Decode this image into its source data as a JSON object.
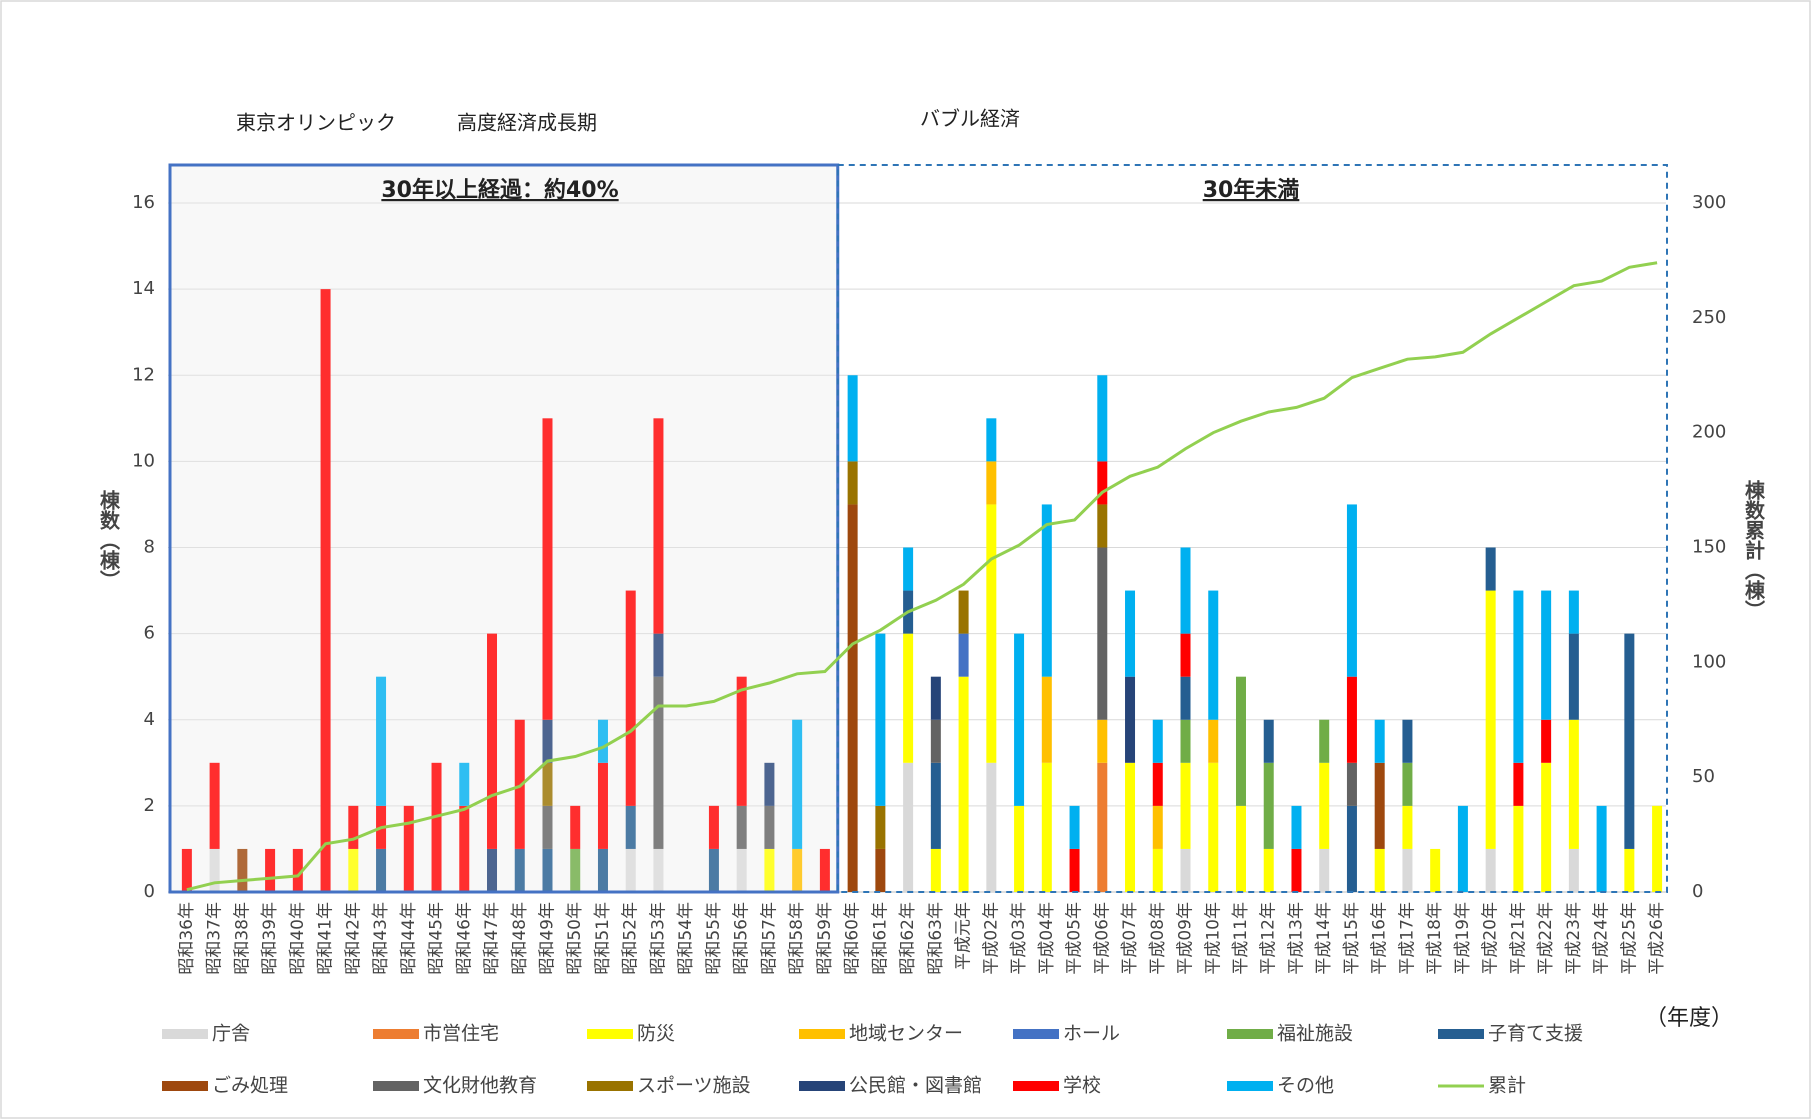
{
  "chart_data": {
    "type": "bar",
    "stacked": true,
    "annotations": [
      "東京オリンピック",
      "高度経済成長期",
      "バブル経済"
    ],
    "regions": [
      {
        "label": "30年以上経過：約40%"
      },
      {
        "label": "30年未満"
      }
    ],
    "y_label": "棟数（棟）",
    "y2_label": "棟数累計（棟）",
    "x_label": "（年度）",
    "categories": [
      "昭和36年",
      "昭和37年",
      "昭和38年",
      "昭和39年",
      "昭和40年",
      "昭和41年",
      "昭和42年",
      "昭和43年",
      "昭和44年",
      "昭和45年",
      "昭和46年",
      "昭和47年",
      "昭和48年",
      "昭和49年",
      "昭和50年",
      "昭和51年",
      "昭和52年",
      "昭和53年",
      "昭和54年",
      "昭和55年",
      "昭和56年",
      "昭和57年",
      "昭和58年",
      "昭和59年",
      "昭和60年",
      "昭和61年",
      "昭和62年",
      "昭和63年",
      "平成元年",
      "平成02年",
      "平成03年",
      "平成04年",
      "平成05年",
      "平成06年",
      "平成07年",
      "平成08年",
      "平成09年",
      "平成10年",
      "平成11年",
      "平成12年",
      "平成13年",
      "平成14年",
      "平成15年",
      "平成16年",
      "平成17年",
      "平成18年",
      "平成19年",
      "平成20年",
      "平成21年",
      "平成22年",
      "平成23年",
      "平成24年",
      "平成25年",
      "平成26年"
    ],
    "series": [
      {
        "name": "庁舎",
        "color": "#d9d9d9",
        "values": [
          0,
          1,
          0,
          0,
          0,
          0,
          0,
          0,
          0,
          0,
          0,
          0,
          0,
          0,
          0,
          0,
          1,
          1,
          0,
          0,
          1,
          0,
          0,
          0,
          0,
          0,
          3,
          0,
          0,
          3,
          0,
          0,
          0,
          0,
          0,
          0,
          1,
          0,
          0,
          0,
          0,
          1,
          0,
          0,
          1,
          0,
          0,
          1,
          0,
          0,
          1,
          0,
          0,
          0
        ]
      },
      {
        "name": "市営住宅",
        "color": "#ed7d31",
        "values": [
          0,
          0,
          0,
          0,
          0,
          0,
          0,
          0,
          0,
          0,
          0,
          0,
          0,
          0,
          0,
          0,
          0,
          0,
          0,
          0,
          0,
          0,
          0,
          0,
          0,
          0,
          0,
          0,
          0,
          0,
          0,
          0,
          0,
          3,
          0,
          0,
          0,
          0,
          0,
          0,
          0,
          0,
          0,
          0,
          0,
          0,
          0,
          0,
          0,
          0,
          0,
          0,
          0,
          0
        ]
      },
      {
        "name": "防災",
        "color": "#ffff00",
        "values": [
          0,
          0,
          0,
          0,
          0,
          0,
          1,
          0,
          0,
          0,
          0,
          0,
          0,
          0,
          0,
          0,
          0,
          0,
          0,
          0,
          0,
          1,
          0,
          0,
          0,
          0,
          3,
          1,
          5,
          6,
          2,
          3,
          0,
          0,
          3,
          1,
          2,
          3,
          2,
          1,
          0,
          2,
          0,
          1,
          1,
          1,
          0,
          6,
          2,
          3,
          3,
          0,
          1,
          2
        ]
      },
      {
        "name": "地域センター",
        "color": "#ffc000",
        "values": [
          0,
          0,
          0,
          0,
          0,
          0,
          0,
          0,
          0,
          0,
          0,
          0,
          0,
          0,
          0,
          0,
          0,
          0,
          0,
          0,
          0,
          0,
          1,
          0,
          0,
          0,
          0,
          0,
          0,
          1,
          0,
          2,
          0,
          1,
          0,
          1,
          0,
          1,
          0,
          0,
          0,
          0,
          0,
          0,
          0,
          0,
          0,
          0,
          0,
          0,
          0,
          0,
          0,
          0
        ]
      },
      {
        "name": "ホール",
        "color": "#4472c4",
        "values": [
          0,
          0,
          0,
          0,
          0,
          0,
          0,
          0,
          0,
          0,
          0,
          0,
          0,
          0,
          0,
          0,
          0,
          0,
          0,
          0,
          0,
          0,
          0,
          0,
          0,
          0,
          0,
          0,
          1,
          0,
          0,
          0,
          0,
          0,
          0,
          0,
          0,
          0,
          0,
          0,
          0,
          0,
          0,
          0,
          0,
          0,
          0,
          0,
          0,
          0,
          0,
          0,
          0,
          0
        ]
      },
      {
        "name": "福祉施設",
        "color": "#70ad47",
        "values": [
          0,
          0,
          0,
          0,
          0,
          0,
          0,
          0,
          0,
          0,
          0,
          0,
          0,
          0,
          1,
          0,
          0,
          0,
          0,
          0,
          0,
          0,
          0,
          0,
          0,
          0,
          0,
          0,
          0,
          0,
          0,
          0,
          0,
          0,
          0,
          0,
          1,
          0,
          3,
          2,
          0,
          1,
          0,
          0,
          1,
          0,
          0,
          0,
          0,
          0,
          0,
          0,
          0,
          0
        ]
      },
      {
        "name": "子育て支援",
        "color": "#255e91",
        "values": [
          0,
          0,
          0,
          0,
          0,
          0,
          0,
          1,
          0,
          0,
          0,
          0,
          1,
          1,
          0,
          1,
          1,
          0,
          0,
          1,
          0,
          0,
          0,
          0,
          0,
          0,
          1,
          2,
          0,
          0,
          0,
          0,
          0,
          0,
          0,
          0,
          1,
          0,
          0,
          1,
          0,
          0,
          2,
          0,
          1,
          0,
          0,
          1,
          0,
          0,
          2,
          0,
          5,
          0
        ]
      },
      {
        "name": "ごみ処理",
        "color": "#9e480e",
        "values": [
          0,
          0,
          1,
          0,
          0,
          0,
          0,
          0,
          0,
          0,
          0,
          0,
          0,
          0,
          0,
          0,
          0,
          0,
          0,
          0,
          0,
          0,
          0,
          0,
          9,
          1,
          0,
          0,
          0,
          0,
          0,
          0,
          0,
          0,
          0,
          0,
          0,
          0,
          0,
          0,
          0,
          0,
          0,
          2,
          0,
          0,
          0,
          0,
          0,
          0,
          0,
          0,
          0,
          0
        ]
      },
      {
        "name": "文化財他教育",
        "color": "#636363",
        "values": [
          0,
          0,
          0,
          0,
          0,
          0,
          0,
          0,
          0,
          0,
          0,
          0,
          0,
          1,
          0,
          0,
          0,
          4,
          0,
          0,
          1,
          1,
          0,
          0,
          0,
          0,
          0,
          1,
          0,
          0,
          0,
          0,
          0,
          4,
          0,
          0,
          0,
          0,
          0,
          0,
          0,
          0,
          1,
          0,
          0,
          0,
          0,
          0,
          0,
          0,
          0,
          0,
          0,
          0
        ]
      },
      {
        "name": "スポーツ施設",
        "color": "#997300",
        "values": [
          0,
          0,
          0,
          0,
          0,
          0,
          0,
          0,
          0,
          0,
          0,
          0,
          0,
          1,
          0,
          0,
          0,
          0,
          0,
          0,
          0,
          0,
          0,
          0,
          1,
          1,
          0,
          0,
          1,
          0,
          0,
          0,
          0,
          1,
          0,
          0,
          0,
          0,
          0,
          0,
          0,
          0,
          0,
          0,
          0,
          0,
          0,
          0,
          0,
          0,
          0,
          0,
          0,
          0
        ]
      },
      {
        "name": "公民館・図書館",
        "color": "#264478",
        "values": [
          0,
          0,
          0,
          0,
          0,
          0,
          0,
          0,
          0,
          0,
          0,
          1,
          0,
          1,
          0,
          0,
          0,
          1,
          0,
          0,
          0,
          1,
          0,
          0,
          0,
          0,
          0,
          1,
          0,
          0,
          0,
          0,
          0,
          0,
          2,
          0,
          0,
          0,
          0,
          0,
          0,
          0,
          0,
          0,
          0,
          0,
          0,
          0,
          0,
          0,
          0,
          0,
          0,
          0
        ]
      },
      {
        "name": "学校",
        "color": "#ff0000",
        "values": [
          1,
          2,
          0,
          1,
          1,
          14,
          1,
          1,
          2,
          3,
          2,
          5,
          3,
          7,
          1,
          2,
          5,
          5,
          0,
          1,
          3,
          0,
          0,
          1,
          0,
          0,
          0,
          0,
          0,
          0,
          0,
          0,
          1,
          1,
          0,
          1,
          1,
          0,
          0,
          0,
          1,
          0,
          2,
          0,
          0,
          0,
          0,
          0,
          1,
          1,
          0,
          0,
          0,
          0
        ]
      },
      {
        "name": "その他",
        "color": "#00b0f0",
        "values": [
          0,
          0,
          0,
          0,
          0,
          0,
          0,
          3,
          0,
          0,
          1,
          0,
          0,
          0,
          0,
          1,
          0,
          0,
          0,
          0,
          0,
          0,
          3,
          0,
          2,
          4,
          1,
          0,
          0,
          1,
          4,
          4,
          1,
          2,
          2,
          1,
          2,
          3,
          0,
          0,
          1,
          0,
          4,
          1,
          0,
          0,
          2,
          0,
          4,
          3,
          1,
          2,
          0,
          0
        ]
      },
      {
        "name": "累計",
        "color": "#92d050",
        "type": "line",
        "axis": "y2",
        "values": [
          1,
          4,
          5,
          6,
          7,
          21,
          23,
          28,
          30,
          33,
          36,
          42,
          46,
          57,
          59,
          63,
          70,
          81,
          81,
          83,
          88,
          91,
          95,
          96,
          108,
          114,
          122,
          127,
          134,
          145,
          151,
          160,
          162,
          174,
          181,
          185,
          193,
          200,
          205,
          209,
          211,
          215,
          224,
          228,
          232,
          233,
          235,
          243,
          250,
          257,
          264,
          266,
          272,
          274
        ]
      }
    ],
    "ylim": [
      0,
      16
    ],
    "yticks": [
      0,
      2,
      4,
      6,
      8,
      10,
      12,
      14,
      16
    ],
    "y2lim": [
      0,
      300
    ],
    "y2ticks": [
      0,
      50,
      100,
      150,
      200,
      250,
      300
    ],
    "grid": true
  }
}
